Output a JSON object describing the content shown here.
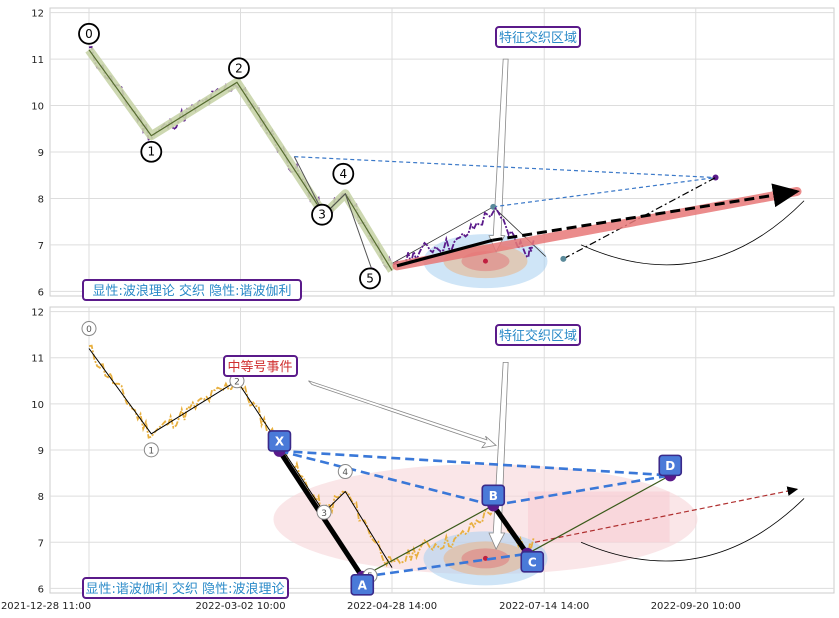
{
  "chart_data": [
    {
      "type": "line",
      "panel": "top",
      "ylim": [
        5.9,
        12.1
      ],
      "yticks": [
        "6",
        "7",
        "8",
        "9",
        "10",
        "11",
        "12"
      ],
      "grid": true,
      "series": [],
      "price_color": "#5a1a8a",
      "wave_points": [
        {
          "label": "0",
          "x": 0.0,
          "y": 11.2
        },
        {
          "label": "1",
          "x": 0.088,
          "y": 9.35
        },
        {
          "label": "2",
          "x": 0.209,
          "y": 10.5
        },
        {
          "label": "3",
          "x": 0.332,
          "y": 7.65
        },
        {
          "label": "4",
          "x": 0.362,
          "y": 8.1
        },
        {
          "label": "5",
          "x": 0.428,
          "y": 6.45
        }
      ],
      "annotation_box": "特征交织区域",
      "legend_box": "显性:波浪理论 交织 隐性:谐波伽利",
      "accent_colors": {
        "wave_fill": "#c8d4a8",
        "trend": "#000000",
        "trend_glow": "#e87878",
        "dash_blue": "#3a78c8",
        "ellipse_blue": "#a8d0f0",
        "ellipse_orange": "#e8b890",
        "ellipse_red": "#e08080"
      }
    },
    {
      "type": "line",
      "panel": "bottom",
      "ylim": [
        5.9,
        12.1
      ],
      "yticks": [
        "6",
        "7",
        "8",
        "9",
        "10",
        "11",
        "12"
      ],
      "xticks": [
        "2021-12-28 11:00",
        "2022-03-02 10:00",
        "2022-04-28 14:00",
        "2022-07-14 14:00",
        "2022-09-20 10:00"
      ],
      "grid": true,
      "series": [],
      "price_color": "#e8b040",
      "wave_points": [
        {
          "label": "0",
          "x": 0.0,
          "y": 11.2
        },
        {
          "label": "1",
          "x": 0.088,
          "y": 9.35
        },
        {
          "label": "2",
          "x": 0.209,
          "y": 10.5
        },
        {
          "label": "3",
          "x": 0.332,
          "y": 7.65
        },
        {
          "label": "4",
          "x": 0.362,
          "y": 8.1
        },
        {
          "label": "5",
          "x": 0.428,
          "y": 6.45
        }
      ],
      "harmonic_points": [
        {
          "label": "X",
          "x": 0.269,
          "y": 8.98
        },
        {
          "label": "A",
          "x": 0.386,
          "y": 6.25
        },
        {
          "label": "B",
          "x": 0.571,
          "y": 7.8
        },
        {
          "label": "C",
          "x": 0.619,
          "y": 6.75
        },
        {
          "label": "D",
          "x": 0.821,
          "y": 8.45
        }
      ],
      "annotation_box": "特征交织区域",
      "event_box": "中等号事件",
      "legend_box": "显性:谐波伽利 交织 隐性:波浪理论",
      "accent_colors": {
        "harmonic_fill": "#000000",
        "dash_blue": "#3a78d8",
        "xabc_fill": "#4a7ad8",
        "xabc_border": "#3a2a8a",
        "pink_ellipse": "#f8d8dc"
      }
    }
  ]
}
